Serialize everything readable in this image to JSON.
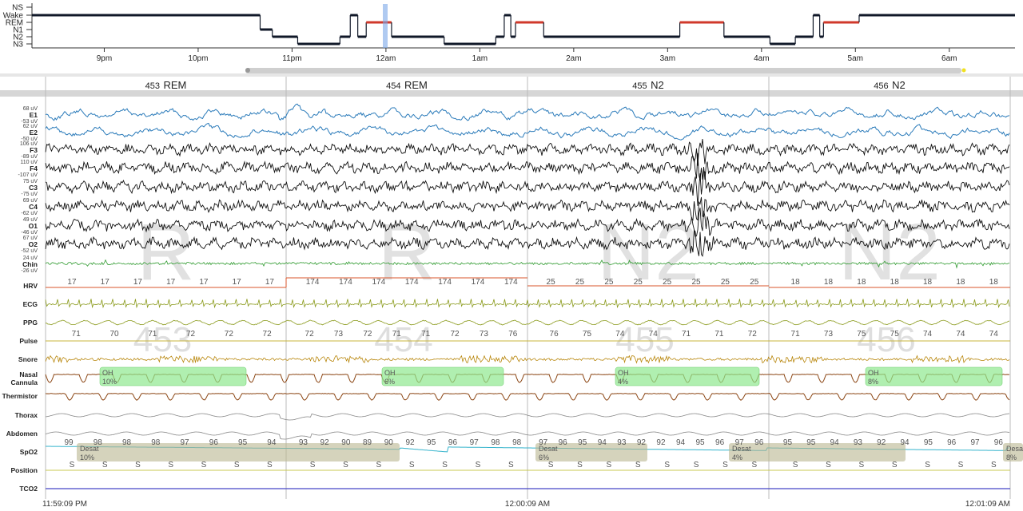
{
  "hypnogram": {
    "stages": [
      "NS",
      "Wake",
      "REM",
      "N1",
      "N2",
      "N3"
    ],
    "xlim": [
      -0.77,
      9.7
    ],
    "xticks": [
      {
        "value": 0,
        "label": "9pm"
      },
      {
        "value": 1,
        "label": "10pm"
      },
      {
        "value": 2,
        "label": "11pm"
      },
      {
        "value": 3,
        "label": "12am"
      },
      {
        "value": 4,
        "label": "1am"
      },
      {
        "value": 5,
        "label": "2am"
      },
      {
        "value": 6,
        "label": "3am"
      },
      {
        "value": 7,
        "label": "4am"
      },
      {
        "value": 8,
        "label": "5am"
      },
      {
        "value": 9,
        "label": "6am"
      }
    ],
    "segments": [
      {
        "start": -0.77,
        "end": 1.66,
        "stage": 1
      },
      {
        "start": 1.66,
        "end": 1.79,
        "stage": 3
      },
      {
        "start": 1.79,
        "end": 2.06,
        "stage": 4
      },
      {
        "start": 2.06,
        "end": 2.51,
        "stage": 5
      },
      {
        "start": 2.51,
        "end": 2.62,
        "stage": 4
      },
      {
        "start": 2.62,
        "end": 2.7,
        "stage": 1
      },
      {
        "start": 2.7,
        "end": 2.79,
        "stage": 4
      },
      {
        "start": 2.79,
        "end": 3.06,
        "stage": 2
      },
      {
        "start": 3.06,
        "end": 3.62,
        "stage": 4
      },
      {
        "start": 3.62,
        "end": 4.17,
        "stage": 5
      },
      {
        "start": 4.17,
        "end": 4.26,
        "stage": 4
      },
      {
        "start": 4.26,
        "end": 4.33,
        "stage": 1
      },
      {
        "start": 4.33,
        "end": 4.38,
        "stage": 4
      },
      {
        "start": 4.38,
        "end": 4.68,
        "stage": 2
      },
      {
        "start": 4.68,
        "end": 6.13,
        "stage": 4
      },
      {
        "start": 6.13,
        "end": 6.6,
        "stage": 2
      },
      {
        "start": 6.6,
        "end": 7.09,
        "stage": 4
      },
      {
        "start": 7.09,
        "end": 7.36,
        "stage": 5
      },
      {
        "start": 7.36,
        "end": 7.55,
        "stage": 4
      },
      {
        "start": 7.55,
        "end": 7.62,
        "stage": 1
      },
      {
        "start": 7.62,
        "end": 7.66,
        "stage": 4
      },
      {
        "start": 7.66,
        "end": 8.04,
        "stage": 2
      },
      {
        "start": 8.04,
        "end": 9.7,
        "stage": 1
      }
    ]
  },
  "epochs": [
    {
      "number": 453,
      "stage": "REM",
      "watermark": "R"
    },
    {
      "number": 454,
      "stage": "REM",
      "watermark": "R"
    },
    {
      "number": 455,
      "stage": "N2",
      "watermark": "N2"
    },
    {
      "number": 456,
      "stage": "N2",
      "watermark": "N2"
    }
  ],
  "channels": [
    {
      "name": "E1",
      "top": "68 uV",
      "bottom": "-53 uV"
    },
    {
      "name": "E2",
      "top": "62 uV",
      "bottom": "-50 uV"
    },
    {
      "name": "F3",
      "top": "106 uV",
      "bottom": "-89 uV"
    },
    {
      "name": "F4",
      "top": "110 uV",
      "bottom": "-107 uV"
    },
    {
      "name": "C3",
      "top": "75 uV",
      "bottom": "-75 uV"
    },
    {
      "name": "C4",
      "top": "69 uV",
      "bottom": "-62 uV"
    },
    {
      "name": "O1",
      "top": "49 uV",
      "bottom": "-46 uV"
    },
    {
      "name": "O2",
      "top": "67 uV",
      "bottom": "-52 uV"
    },
    {
      "name": "Chin",
      "top": "24 uV",
      "bottom": "-26 uV"
    },
    {
      "name": "HRV"
    },
    {
      "name": "ECG"
    },
    {
      "name": "PPG"
    },
    {
      "name": "Pulse"
    },
    {
      "name": "Snore"
    },
    {
      "name": "Nasal Cannula"
    },
    {
      "name": "Thermistor"
    },
    {
      "name": "Thorax"
    },
    {
      "name": "Abdomen"
    },
    {
      "name": "SpO2"
    },
    {
      "name": "Position"
    },
    {
      "name": "TCO2"
    }
  ],
  "hrv": [
    [
      17,
      17,
      17,
      17,
      17,
      17,
      17
    ],
    [
      174,
      174,
      174,
      174,
      174,
      174,
      174
    ],
    [
      25,
      25,
      25,
      25,
      25,
      25,
      25,
      25
    ],
    [
      18,
      18,
      18,
      18,
      18,
      18,
      18
    ]
  ],
  "pulse": [
    [
      71,
      70,
      71,
      72,
      72,
      72
    ],
    [
      72,
      73,
      72,
      71,
      71,
      72,
      73,
      76
    ],
    [
      76,
      75,
      74,
      74,
      71,
      71,
      72
    ],
    [
      71,
      73,
      75,
      75,
      74,
      74,
      74
    ]
  ],
  "spo2": [
    [
      99,
      98,
      98,
      98,
      97,
      96,
      95,
      94
    ],
    [
      93,
      92,
      90,
      89,
      90,
      92,
      95,
      96,
      97,
      98,
      98
    ],
    [
      97,
      96,
      95,
      94,
      93,
      92,
      92,
      94,
      95,
      96,
      97,
      96
    ],
    [
      95,
      95,
      94,
      93,
      92,
      94,
      95,
      96,
      97,
      96
    ]
  ],
  "position": [
    [
      "S",
      "S",
      "S",
      "S",
      "S",
      "S",
      "S"
    ],
    [
      "S",
      "S",
      "S",
      "S",
      "S",
      "S",
      "S"
    ],
    [
      "S",
      "S",
      "S",
      "S",
      "S",
      "S",
      "S",
      "S"
    ],
    [
      "S",
      "S",
      "S",
      "S",
      "S",
      "S",
      "S"
    ]
  ],
  "oh_events": [
    {
      "label": "OH",
      "detail": "10%"
    },
    {
      "label": "OH",
      "detail": "6%"
    },
    {
      "label": "OH",
      "detail": "4%"
    },
    {
      "label": "OH",
      "detail": "8%"
    }
  ],
  "desat_events": [
    {
      "label": "Desat",
      "detail": "10%"
    },
    {
      "label": "Desat",
      "detail": "6%"
    },
    {
      "label": "Desat",
      "detail": "4%"
    },
    {
      "label": "Desat",
      "detail": "8%"
    }
  ],
  "timestamps": [
    "11:59:09 PM",
    "12:00:09 AM",
    "12:01:09 AM"
  ]
}
